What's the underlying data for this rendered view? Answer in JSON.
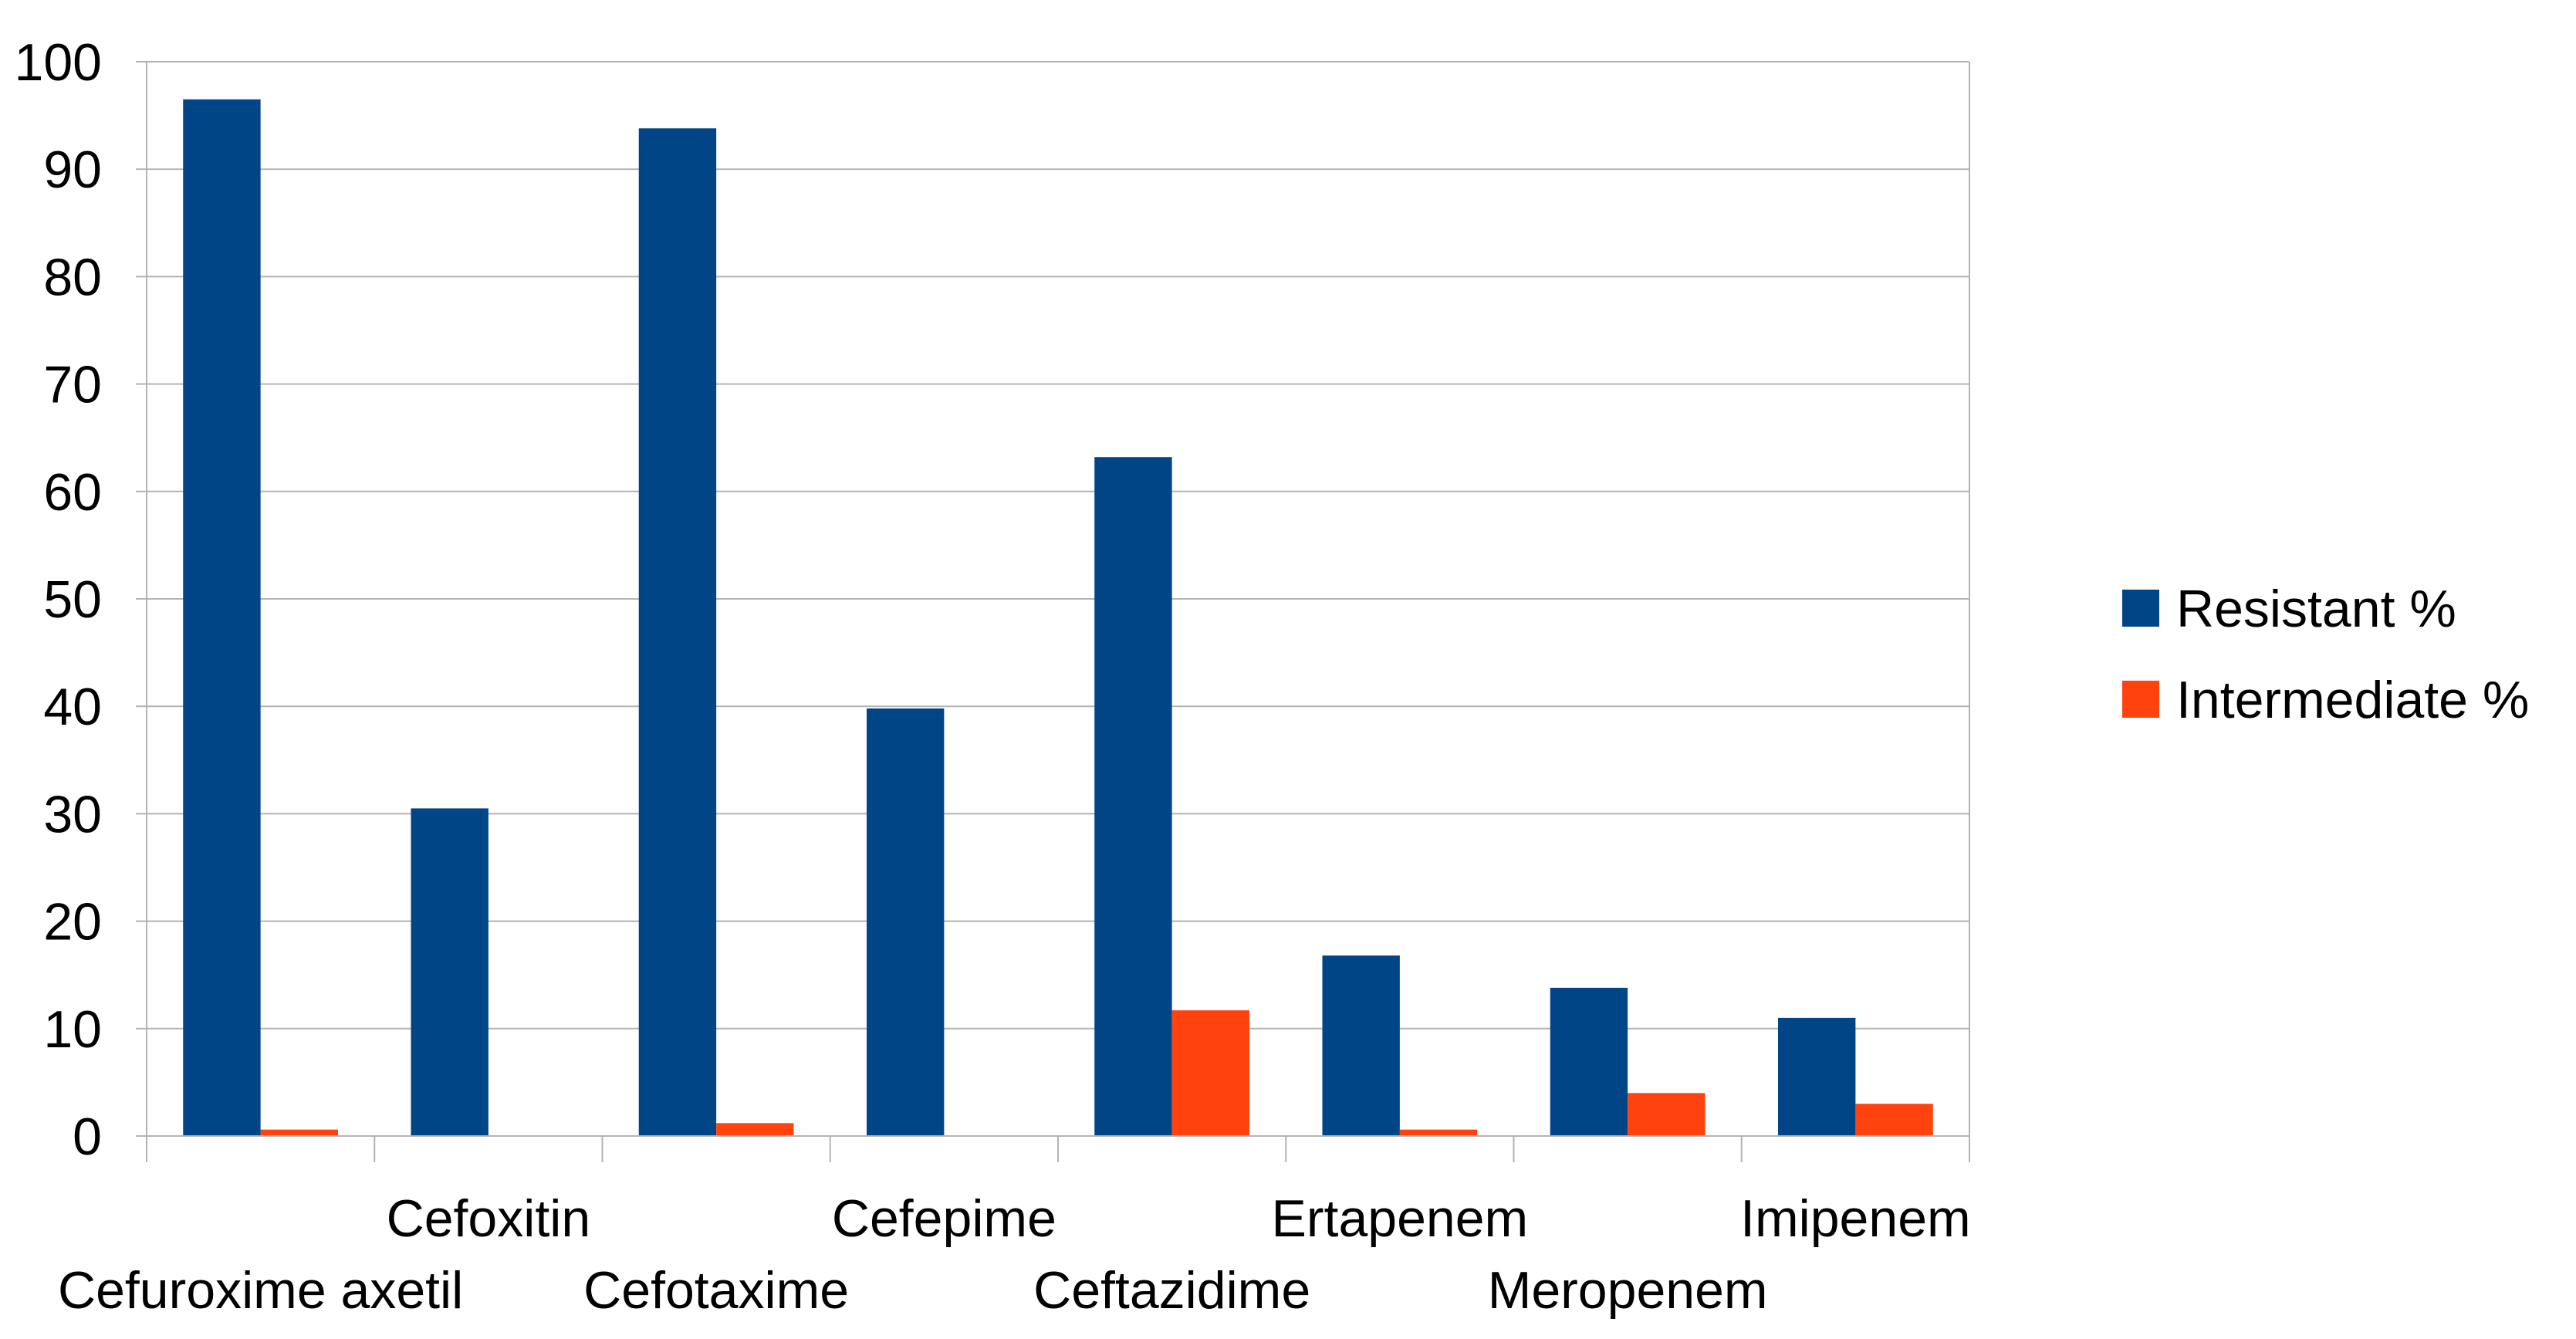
{
  "colors": {
    "resistant": "#004586",
    "intermediate": "#ff420e",
    "grid": "#b3b3b3",
    "axis": "#b3b3b3",
    "background": "#ffffff"
  },
  "chart_data": {
    "type": "bar",
    "title": "",
    "xlabel": "",
    "ylabel": "",
    "categories": [
      "Cefuroxime axetil",
      "Cefoxitin",
      "Cefotaxime",
      "Cefepime",
      "Ceftazidime",
      "Ertapenem",
      "Meropenem",
      "Imipenem"
    ],
    "series": [
      {
        "name": "Resistant %",
        "values": [
          96.5,
          30.5,
          93.8,
          39.8,
          63.2,
          16.8,
          13.8,
          11.0
        ]
      },
      {
        "name": "Intermediate %",
        "values": [
          0.6,
          0,
          1.2,
          0,
          11.7,
          0.6,
          4.0,
          3.0
        ]
      }
    ],
    "ylim": [
      0,
      100
    ],
    "yticks": [
      "0",
      "10",
      "20",
      "30",
      "40",
      "50",
      "60",
      "70",
      "80",
      "90",
      "100"
    ],
    "grid": true,
    "legend": "right"
  }
}
